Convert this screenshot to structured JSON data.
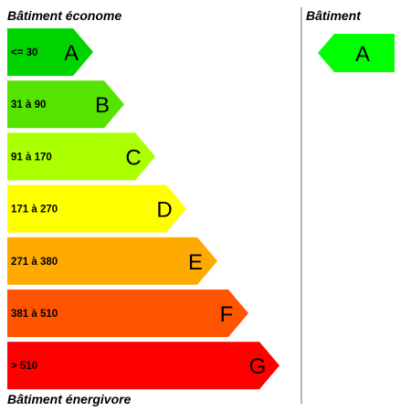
{
  "header_left": "Bâtiment économe",
  "header_right": "Bâtiment",
  "footer_left": "Bâtiment énergivore",
  "classes": [
    {
      "letter": "A",
      "range": "<= 30",
      "color": "#00d400",
      "text_color": "#000000"
    },
    {
      "letter": "B",
      "range": "31 à 90",
      "color": "#55e400",
      "text_color": "#000000"
    },
    {
      "letter": "C",
      "range": "91 à 170",
      "color": "#aaff00",
      "text_color": "#000000"
    },
    {
      "letter": "D",
      "range": "171 à 270",
      "color": "#ffff00",
      "text_color": "#000000"
    },
    {
      "letter": "E",
      "range": "271 à 380",
      "color": "#ffaa00",
      "text_color": "#000000"
    },
    {
      "letter": "F",
      "range": "381 à 510",
      "color": "#ff5400",
      "text_color": "#000000"
    },
    {
      "letter": "G",
      "range": "> 510",
      "color": "#ff0000",
      "text_color": "#ffffff"
    }
  ],
  "rating": {
    "letter": "A",
    "color": "#00ff00"
  },
  "divider_color": "#999999"
}
